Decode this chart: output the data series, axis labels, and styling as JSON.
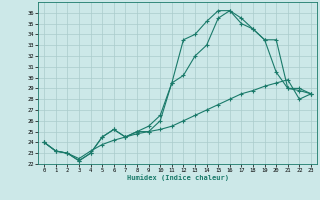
{
  "xlabel": "Humidex (Indice chaleur)",
  "bg_color": "#cce8e8",
  "line_color": "#1a7a6a",
  "grid_color": "#aacccc",
  "xlim": [
    -0.5,
    23.5
  ],
  "ylim": [
    22,
    37
  ],
  "xticks": [
    0,
    1,
    2,
    3,
    4,
    5,
    6,
    7,
    8,
    9,
    10,
    11,
    12,
    13,
    14,
    15,
    16,
    17,
    18,
    19,
    20,
    21,
    22,
    23
  ],
  "yticks": [
    22,
    23,
    24,
    25,
    26,
    27,
    28,
    29,
    30,
    31,
    32,
    33,
    34,
    35,
    36
  ],
  "series1_x": [
    0,
    1,
    2,
    3,
    4,
    5,
    6,
    7,
    8,
    9,
    10,
    11,
    12,
    13,
    14,
    15,
    16,
    17,
    18,
    19,
    20,
    21,
    22,
    23
  ],
  "series1_y": [
    24.0,
    23.2,
    23.0,
    22.3,
    23.0,
    24.5,
    25.2,
    24.5,
    25.0,
    25.0,
    26.0,
    29.5,
    33.5,
    34.0,
    35.2,
    36.2,
    36.2,
    35.0,
    34.5,
    33.5,
    30.5,
    29.0,
    29.0,
    28.5
  ],
  "series2_x": [
    0,
    1,
    2,
    3,
    4,
    5,
    6,
    7,
    8,
    9,
    10,
    11,
    12,
    13,
    14,
    15,
    16,
    17,
    18,
    19,
    20,
    21,
    22,
    23
  ],
  "series2_y": [
    24.0,
    23.2,
    23.0,
    22.3,
    23.0,
    24.5,
    25.2,
    24.5,
    25.0,
    25.5,
    26.5,
    29.5,
    30.2,
    32.0,
    33.0,
    35.5,
    36.2,
    35.5,
    34.5,
    33.5,
    33.5,
    29.0,
    28.8,
    28.5
  ],
  "series3_x": [
    0,
    1,
    2,
    3,
    4,
    5,
    6,
    7,
    8,
    9,
    10,
    11,
    12,
    13,
    14,
    15,
    16,
    17,
    18,
    19,
    20,
    21,
    22,
    23
  ],
  "series3_y": [
    24.0,
    23.2,
    23.0,
    22.5,
    23.2,
    23.8,
    24.2,
    24.5,
    24.8,
    25.0,
    25.2,
    25.5,
    26.0,
    26.5,
    27.0,
    27.5,
    28.0,
    28.5,
    28.8,
    29.2,
    29.5,
    29.8,
    28.0,
    28.5
  ]
}
